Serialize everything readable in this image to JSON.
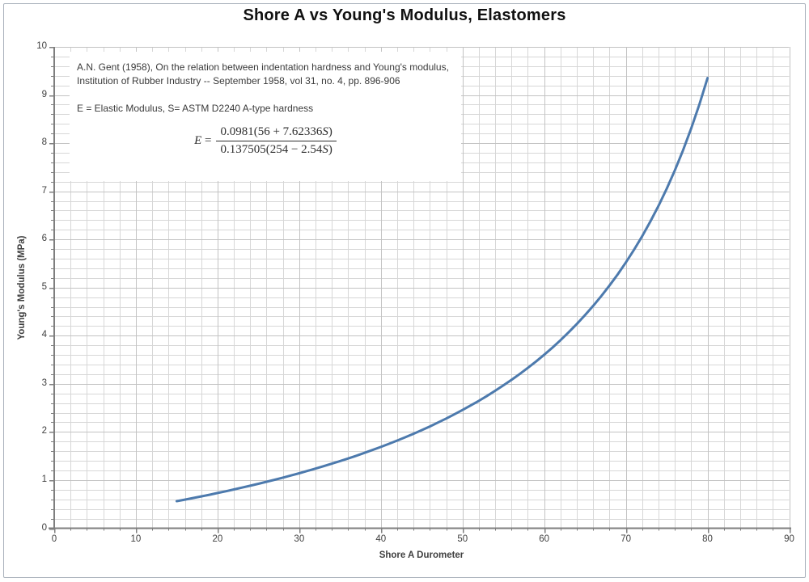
{
  "annotation": {
    "citation": "A.N. Gent (1958), On the relation between indentation hardness and Young's modulus, Institution of Rubber Industry -- September 1958, vol 31, no. 4, pp. 896-906",
    "definitions": "E = Elastic Modulus, S= ASTM D2240 A-type hardness",
    "formula": {
      "lhs": "E =",
      "numerator": "0.0981(56 + 7.62336S)",
      "denominator": "0.137505(254 − 2.54S)"
    }
  },
  "chart_data": {
    "type": "line",
    "title": "Shore A vs Young's Modulus, Elastomers",
    "xlabel": "Shore A Durometer",
    "ylabel": "Young's Modulus (MPa)",
    "xlim": [
      0,
      90
    ],
    "ylim": [
      0,
      10
    ],
    "x_tick_step": 10,
    "x_minor_step": 2,
    "y_tick_step": 1,
    "y_minor_step": 0.2,
    "grid": "major and minor gridlines, light gray",
    "legend": "none",
    "colors": {
      "line": "#4d7aad",
      "grid_minor": "#d7d7d7",
      "grid_major": "#c3c3c3",
      "axis": "#7f7f7f",
      "tick_text": "#3f3f3f"
    },
    "series": [
      {
        "name": "Gent (1958): E = 0.0981(56 + 7.62336S) / (0.137505(254 − 2.54S))",
        "x": [
          15,
          16,
          17,
          18,
          19,
          20,
          21,
          22,
          23,
          24,
          25,
          26,
          27,
          28,
          29,
          30,
          31,
          32,
          33,
          34,
          35,
          36,
          37,
          38,
          39,
          40,
          41,
          42,
          43,
          44,
          45,
          46,
          47,
          48,
          49,
          50,
          51,
          52,
          53,
          54,
          55,
          56,
          57,
          58,
          59,
          60,
          61,
          62,
          63,
          64,
          65,
          66,
          67,
          68,
          69,
          70,
          71,
          72,
          73,
          74,
          75,
          76,
          77,
          78,
          79,
          80
        ],
        "y": [
          0.563,
          0.595,
          0.628,
          0.662,
          0.696,
          0.732,
          0.768,
          0.806,
          0.844,
          0.883,
          0.923,
          0.965,
          1.007,
          1.051,
          1.096,
          1.142,
          1.19,
          1.239,
          1.289,
          1.341,
          1.395,
          1.45,
          1.507,
          1.566,
          1.627,
          1.69,
          1.755,
          1.822,
          1.891,
          1.963,
          2.038,
          2.115,
          2.196,
          2.279,
          2.366,
          2.456,
          2.55,
          2.647,
          2.749,
          2.856,
          2.967,
          3.083,
          3.204,
          3.331,
          3.465,
          3.605,
          3.752,
          3.908,
          4.071,
          4.244,
          4.426,
          4.619,
          4.824,
          5.042,
          5.273,
          5.521,
          5.785,
          6.068,
          6.372,
          6.699,
          7.053,
          7.436,
          7.852,
          8.307,
          8.804,
          9.351
        ]
      }
    ]
  }
}
